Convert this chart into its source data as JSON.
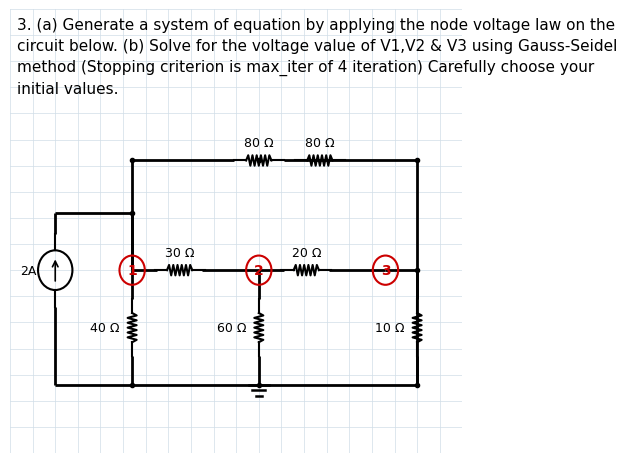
{
  "title_text": "3. (a) Generate a system of equation by applying the node voltage law on the\ncircuit below. (b) Solve for the voltage value of V1,V2 & V3 using Gauss-Seidel\nmethod (Stopping criterion is max_iter of 4 iteration) Carefully choose your\ninitial values.",
  "bg_color": "#ffffff",
  "grid_color": "#d0dde8",
  "wire_color": "#000000",
  "node_circle_color": "#cc0000",
  "node_text_color": "#cc0000",
  "resistor_color": "#000000",
  "source_color": "#000000",
  "label_color": "#000000",
  "resistors": {
    "R_80": {
      "label": "80 Ω",
      "type": "horizontal"
    },
    "R_30": {
      "label": "30 Ω",
      "type": "horizontal"
    },
    "R_20": {
      "label": "20 Ω",
      "type": "horizontal"
    },
    "R_40": {
      "label": "40 Ω",
      "type": "vertical"
    },
    "R_60": {
      "label": "60 Ω",
      "type": "vertical"
    },
    "R_10": {
      "label": "10 Ω",
      "type": "vertical"
    }
  },
  "nodes": [
    "1",
    "2",
    "3"
  ],
  "current_source": "2A",
  "font_size_title": 11,
  "font_size_labels": 9,
  "font_size_nodes": 10
}
